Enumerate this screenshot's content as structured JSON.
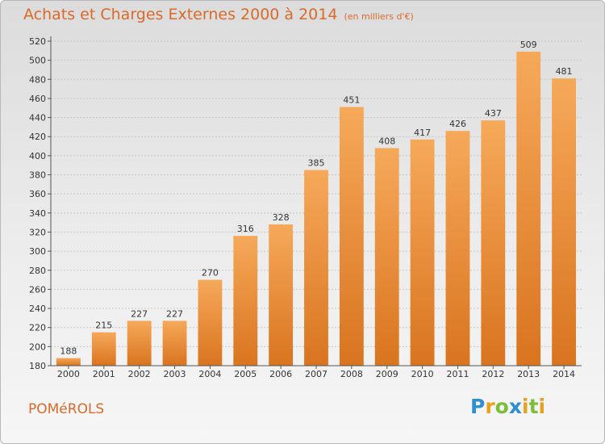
{
  "header": {
    "title": "Achats et Charges Externes 2000 à 2014",
    "unit": "(en milliers d'€)"
  },
  "footer": {
    "town": "POMéROLS",
    "logo_letters": [
      {
        "char": "P",
        "color": "#2f8fd0"
      },
      {
        "char": "r",
        "color": "#e9a020"
      },
      {
        "char": "o",
        "color": "#7cbd3a"
      },
      {
        "char": "x",
        "color": "#2f8fd0"
      },
      {
        "char": "i",
        "color": "#e9a020"
      },
      {
        "char": "t",
        "color": "#7cbd3a"
      },
      {
        "char": "i",
        "color": "#e9a020"
      }
    ]
  },
  "colors": {
    "accent": "#d96a2a",
    "bar_top": "#f6a95a",
    "bar_bottom": "#d9741f"
  },
  "chart_data": {
    "type": "bar",
    "title": "Achats et Charges Externes 2000 à 2014",
    "subtitle": "(en milliers d'€)",
    "categories": [
      "2000",
      "2001",
      "2002",
      "2003",
      "2004",
      "2005",
      "2006",
      "2007",
      "2008",
      "2009",
      "2010",
      "2011",
      "2012",
      "2013",
      "2014"
    ],
    "values": [
      188,
      215,
      227,
      227,
      270,
      316,
      328,
      385,
      451,
      408,
      417,
      426,
      437,
      509,
      481
    ],
    "ylim": [
      180,
      520
    ],
    "yticks": [
      180,
      200,
      220,
      240,
      260,
      280,
      300,
      320,
      340,
      360,
      380,
      400,
      420,
      440,
      460,
      480,
      500,
      520
    ],
    "grid": true,
    "legend": "none"
  }
}
